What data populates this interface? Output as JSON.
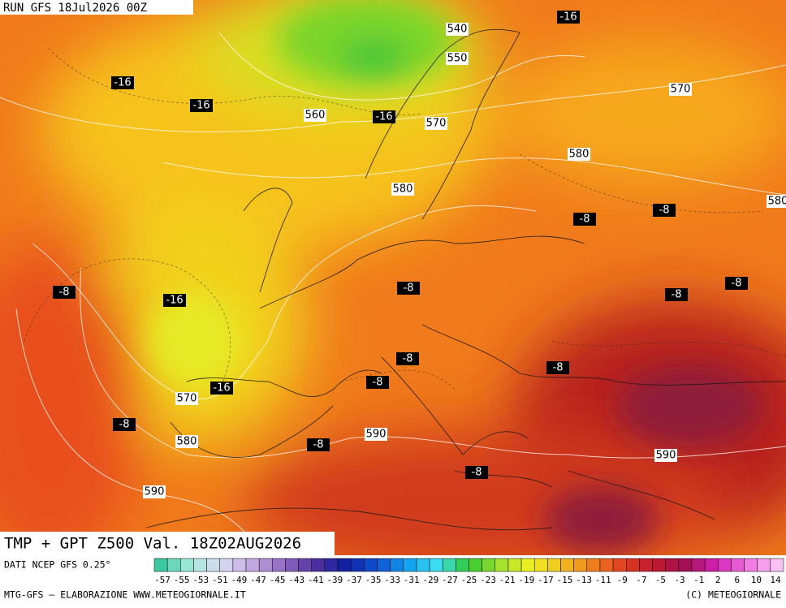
{
  "header": {
    "run": "RUN GFS 18Jul2026 00Z"
  },
  "map": {
    "geopotential_labels": [
      540,
      550,
      560,
      570,
      570,
      580,
      580,
      580,
      570,
      580,
      590,
      590,
      590
    ],
    "temperature_labels": [
      -16,
      -16,
      -16,
      -16,
      -8,
      -8,
      -8,
      -16,
      -8,
      -8,
      -8,
      -8,
      -8,
      -8,
      -16,
      -8,
      -8,
      -8
    ]
  },
  "title": "TMP + GPT Z500 Val. 18Z02AUG2026",
  "legend": {
    "source": "DATI NCEP GFS 0.25°",
    "scale": [
      -57,
      -55,
      -53,
      -51,
      -49,
      -47,
      -45,
      -43,
      -41,
      -39,
      -37,
      -35,
      -33,
      -31,
      -29,
      -27,
      -25,
      -23,
      -21,
      -19,
      -17,
      -15,
      -13,
      -11,
      -9,
      -7,
      -5,
      -3,
      -1,
      2,
      6,
      10,
      14
    ]
  },
  "footer": {
    "left": "MTG-GFS — ELABORAZIONE WWW.METEOGIORNALE.IT",
    "right": "(C) METEOGIORNALE"
  }
}
